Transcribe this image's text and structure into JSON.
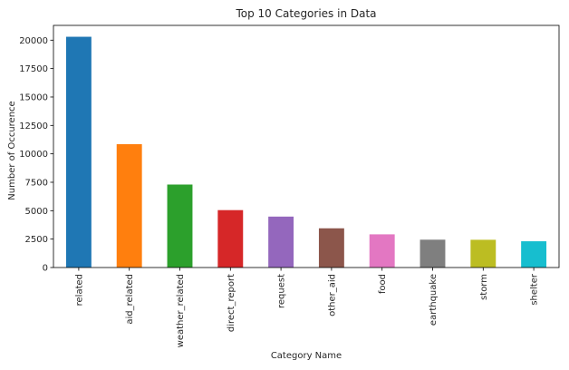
{
  "chart_data": {
    "type": "bar",
    "title": "Top 10 Categories in Data",
    "xlabel": "Category Name",
    "ylabel": "Number of Occurence",
    "categories": [
      "related",
      "aid_related",
      "weather_related",
      "direct_report",
      "request",
      "other_aid",
      "food",
      "earthquake",
      "storm",
      "shelter"
    ],
    "values": [
      20300,
      10850,
      7300,
      5050,
      4480,
      3450,
      2920,
      2450,
      2440,
      2310
    ],
    "colors": [
      "#1f77b4",
      "#ff7f0e",
      "#2ca02c",
      "#d62728",
      "#9467bd",
      "#8c564b",
      "#e377c2",
      "#7f7f7f",
      "#bcbd22",
      "#17becf"
    ],
    "ylim": [
      0,
      21300
    ],
    "yticks": [
      0,
      2500,
      5000,
      7500,
      10000,
      12500,
      15000,
      17500,
      20000
    ],
    "grid": false,
    "legend": "none"
  }
}
